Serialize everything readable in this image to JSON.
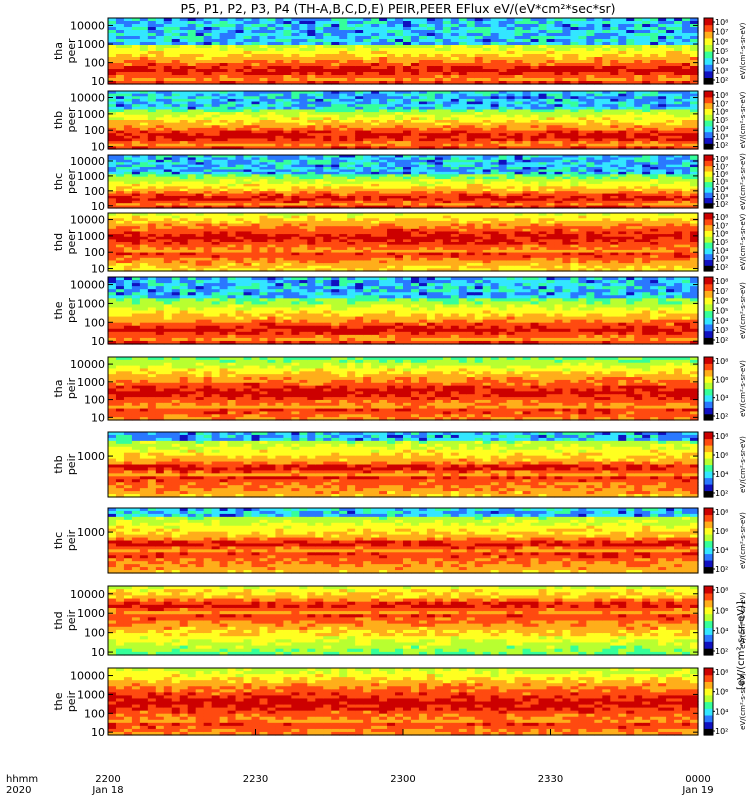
{
  "chart_data": {
    "type": "heatmap",
    "title": "P5, P1, P2, P3, P4 (TH-A,B,C,D,E) PEIR,PEER EFlux eV/(eV*cm²*sec*sr)",
    "x_axis": {
      "label_line1": "hhmm",
      "label_line2": "2020",
      "ticks": [
        {
          "value": "2200",
          "sub": "Jan 18"
        },
        {
          "value": "2230",
          "sub": ""
        },
        {
          "value": "2300",
          "sub": ""
        },
        {
          "value": "2330",
          "sub": ""
        },
        {
          "value": "0000",
          "sub": "Jan 19"
        }
      ],
      "range_hours": [
        22.0,
        24.0
      ]
    },
    "colorbar_label": "[eV/(cm²-s-sr-eV)]",
    "panels": [
      {
        "probe": "tha",
        "species": "peer",
        "yticks": [
          "10000",
          "1000",
          "100",
          "10"
        ],
        "cb_ticks": [
          "10⁸",
          "10⁷",
          "10⁶",
          "10⁵",
          "10⁴",
          "10³",
          "10²"
        ],
        "cb_label": "eV/(cm²-s-sr-eV)",
        "warm_band_log_energy": [
          1.0,
          2.2
        ],
        "noise_above_log_energy": 3.0
      },
      {
        "probe": "thb",
        "species": "peer",
        "yticks": [
          "10000",
          "1000",
          "100",
          "10"
        ],
        "cb_ticks": [
          "10⁸",
          "10⁷",
          "10⁶",
          "10⁵",
          "10⁴",
          "10³",
          "10²"
        ],
        "cb_label": "eV/(cm²-s-sr-eV)",
        "warm_band_log_energy": [
          1.0,
          2.3
        ],
        "noise_above_log_energy": 3.3
      },
      {
        "probe": "thc",
        "species": "peer",
        "yticks": [
          "10000",
          "1000",
          "100",
          "10"
        ],
        "cb_ticks": [
          "10⁸",
          "10⁷",
          "10⁶",
          "10⁵",
          "10⁴",
          "10³",
          "10²"
        ],
        "cb_label": "eV/(cm²-s-sr-eV)",
        "warm_band_log_energy": [
          1.0,
          2.0
        ],
        "noise_above_log_energy": 3.1
      },
      {
        "probe": "thd",
        "species": "peer",
        "yticks": [
          "10000",
          "1000",
          "100",
          "10"
        ],
        "cb_ticks": [
          "10⁸",
          "10⁷",
          "10⁶",
          "10⁵",
          "10⁴",
          "10³",
          "10²"
        ],
        "cb_label": "eV/(cm²-s-sr-eV)",
        "warm_band_log_energy": [
          2.0,
          3.8
        ],
        "noise_above_log_energy": 5.0
      },
      {
        "probe": "the",
        "species": "peer",
        "yticks": [
          "10000",
          "1000",
          "100",
          "10"
        ],
        "cb_ticks": [
          "10⁸",
          "10⁷",
          "10⁶",
          "10⁵",
          "10⁴",
          "10³",
          "10²"
        ],
        "cb_label": "eV/(cm²-s-sr-eV)",
        "warm_band_log_energy": [
          1.0,
          2.2
        ],
        "noise_above_log_energy": 3.2
      },
      {
        "probe": "tha",
        "species": "peir",
        "yticks": [
          "10000",
          "1000",
          "100",
          "10"
        ],
        "cb_ticks": [
          "10⁸",
          "10⁶",
          "10⁴",
          "10²"
        ],
        "cb_label": "eV/(cm²-s-sr-eV)",
        "warm_band_log_energy": [
          1.5,
          3.3
        ],
        "noise_above_log_energy": 5.0
      },
      {
        "probe": "thb",
        "species": "peir",
        "yticks": [
          "1000"
        ],
        "cb_ticks": [
          "10⁸",
          "10⁶",
          "10⁴",
          "10²"
        ],
        "cb_label": "eV/(cm²-s-sr-eV)",
        "warm_band_log_energy": [
          2.2,
          2.8
        ],
        "noise_above_log_energy": 3.6
      },
      {
        "probe": "thc",
        "species": "peir",
        "yticks": [
          "1000"
        ],
        "cb_ticks": [
          "10⁸",
          "10⁶",
          "10⁴",
          "10²"
        ],
        "cb_label": "eV/(cm²-s-sr-eV)",
        "warm_band_log_energy": [
          2.2,
          2.8
        ],
        "noise_above_log_energy": 3.6
      },
      {
        "probe": "thd",
        "species": "peir",
        "yticks": [
          "10000",
          "1000",
          "100",
          "10"
        ],
        "cb_ticks": [
          "10⁸",
          "10⁶",
          "10⁴",
          "10²"
        ],
        "cb_label": "eV/(cm²-s-sr-eV)",
        "warm_band_log_energy": [
          3.0,
          3.8
        ],
        "noise_above_log_energy": 5.0
      },
      {
        "probe": "the",
        "species": "peir",
        "yticks": [
          "10000",
          "1000",
          "100",
          "10"
        ],
        "cb_ticks": [
          "10⁸",
          "10⁶",
          "10⁴",
          "10²"
        ],
        "cb_label": "eV/(cm²-s-sr-eV)",
        "warm_band_log_energy": [
          1.5,
          3.6
        ],
        "noise_above_log_energy": 5.0
      }
    ],
    "colors": {
      "c0": "#000000",
      "c1": "#1010c0",
      "c2": "#2a78ff",
      "c3": "#33e6ff",
      "c4": "#35ff9a",
      "c5": "#b8ff30",
      "c6": "#ffff20",
      "c7": "#ffae1a",
      "c8": "#ff4a10",
      "c9": "#cc0000"
    }
  }
}
